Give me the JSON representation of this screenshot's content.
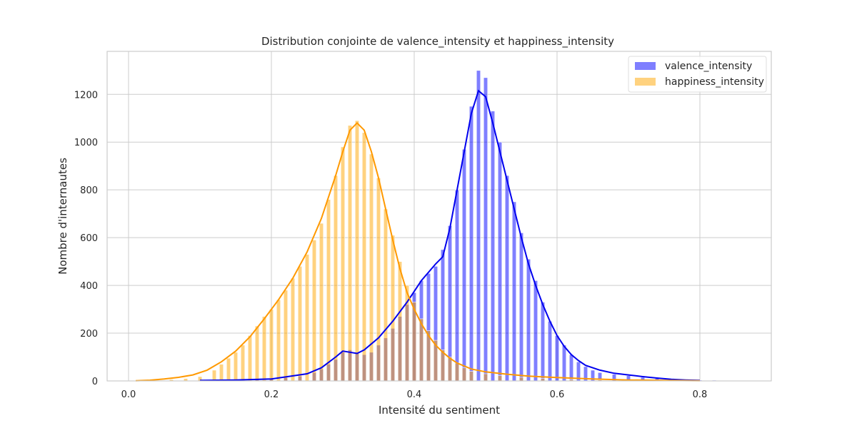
{
  "chart_data": {
    "type": "histogram",
    "title": "Distribution conjointe de valence_intensity et happiness_intensity",
    "xlabel": "Intensité du sentiment",
    "ylabel": "Nombre d'internautes",
    "xlim": [
      -0.03,
      0.9
    ],
    "ylim": [
      0,
      1380
    ],
    "xticks": [
      0.0,
      0.2,
      0.4,
      0.6,
      0.8
    ],
    "xtick_labels": [
      "0.0",
      "0.2",
      "0.4",
      "0.6",
      "0.8"
    ],
    "yticks": [
      0,
      200,
      400,
      600,
      800,
      1000,
      1200
    ],
    "ytick_labels": [
      "0",
      "200",
      "400",
      "600",
      "800",
      "1000",
      "1200"
    ],
    "grid": true,
    "legend_position": "top-right",
    "bin_width": 0.0055,
    "series": [
      {
        "name": "valence_intensity",
        "color": "#0000ff",
        "bar_opacity": 0.5,
        "kde": true,
        "bins": [
          [
            0.1,
            3
          ],
          [
            0.12,
            4
          ],
          [
            0.14,
            5
          ],
          [
            0.16,
            6
          ],
          [
            0.18,
            8
          ],
          [
            0.2,
            10
          ],
          [
            0.22,
            14
          ],
          [
            0.24,
            20
          ],
          [
            0.26,
            35
          ],
          [
            0.27,
            50
          ],
          [
            0.28,
            70
          ],
          [
            0.29,
            90
          ],
          [
            0.3,
            120
          ],
          [
            0.31,
            130
          ],
          [
            0.32,
            120
          ],
          [
            0.33,
            110
          ],
          [
            0.34,
            120
          ],
          [
            0.35,
            150
          ],
          [
            0.36,
            180
          ],
          [
            0.37,
            220
          ],
          [
            0.38,
            270
          ],
          [
            0.39,
            320
          ],
          [
            0.4,
            370
          ],
          [
            0.41,
            420
          ],
          [
            0.42,
            450
          ],
          [
            0.43,
            480
          ],
          [
            0.44,
            550
          ],
          [
            0.45,
            650
          ],
          [
            0.46,
            800
          ],
          [
            0.47,
            970
          ],
          [
            0.48,
            1150
          ],
          [
            0.49,
            1300
          ],
          [
            0.5,
            1270
          ],
          [
            0.51,
            1130
          ],
          [
            0.52,
            1000
          ],
          [
            0.53,
            860
          ],
          [
            0.54,
            750
          ],
          [
            0.55,
            620
          ],
          [
            0.56,
            510
          ],
          [
            0.57,
            420
          ],
          [
            0.58,
            330
          ],
          [
            0.59,
            250
          ],
          [
            0.6,
            190
          ],
          [
            0.61,
            150
          ],
          [
            0.62,
            110
          ],
          [
            0.63,
            80
          ],
          [
            0.64,
            60
          ],
          [
            0.65,
            45
          ],
          [
            0.66,
            35
          ],
          [
            0.68,
            28
          ],
          [
            0.7,
            22
          ],
          [
            0.72,
            15
          ],
          [
            0.74,
            10
          ],
          [
            0.76,
            7
          ],
          [
            0.78,
            5
          ],
          [
            0.8,
            4
          ],
          [
            0.82,
            3
          ],
          [
            0.84,
            2
          ],
          [
            0.86,
            2
          ]
        ],
        "kde_points": [
          [
            0.1,
            2
          ],
          [
            0.15,
            4
          ],
          [
            0.2,
            8
          ],
          [
            0.25,
            30
          ],
          [
            0.27,
            55
          ],
          [
            0.29,
            100
          ],
          [
            0.3,
            125
          ],
          [
            0.31,
            120
          ],
          [
            0.32,
            115
          ],
          [
            0.33,
            130
          ],
          [
            0.35,
            180
          ],
          [
            0.37,
            250
          ],
          [
            0.39,
            330
          ],
          [
            0.41,
            420
          ],
          [
            0.43,
            490
          ],
          [
            0.44,
            520
          ],
          [
            0.45,
            640
          ],
          [
            0.46,
            800
          ],
          [
            0.47,
            960
          ],
          [
            0.48,
            1120
          ],
          [
            0.49,
            1215
          ],
          [
            0.5,
            1190
          ],
          [
            0.51,
            1080
          ],
          [
            0.52,
            960
          ],
          [
            0.53,
            840
          ],
          [
            0.54,
            720
          ],
          [
            0.55,
            600
          ],
          [
            0.56,
            490
          ],
          [
            0.57,
            400
          ],
          [
            0.58,
            320
          ],
          [
            0.59,
            250
          ],
          [
            0.6,
            190
          ],
          [
            0.61,
            145
          ],
          [
            0.62,
            110
          ],
          [
            0.63,
            85
          ],
          [
            0.64,
            65
          ],
          [
            0.66,
            45
          ],
          [
            0.68,
            32
          ],
          [
            0.7,
            25
          ],
          [
            0.72,
            18
          ],
          [
            0.74,
            12
          ],
          [
            0.76,
            7
          ],
          [
            0.78,
            4
          ],
          [
            0.8,
            2
          ]
        ]
      },
      {
        "name": "happiness_intensity",
        "color": "#ffa500",
        "bar_opacity": 0.5,
        "kde": true,
        "bins": [
          [
            0.02,
            2
          ],
          [
            0.04,
            3
          ],
          [
            0.06,
            6
          ],
          [
            0.08,
            10
          ],
          [
            0.1,
            18
          ],
          [
            0.12,
            45
          ],
          [
            0.13,
            70
          ],
          [
            0.14,
            95
          ],
          [
            0.15,
            120
          ],
          [
            0.16,
            150
          ],
          [
            0.17,
            190
          ],
          [
            0.18,
            230
          ],
          [
            0.19,
            270
          ],
          [
            0.2,
            300
          ],
          [
            0.21,
            340
          ],
          [
            0.22,
            380
          ],
          [
            0.23,
            430
          ],
          [
            0.24,
            480
          ],
          [
            0.25,
            530
          ],
          [
            0.26,
            590
          ],
          [
            0.27,
            660
          ],
          [
            0.28,
            760
          ],
          [
            0.29,
            860
          ],
          [
            0.3,
            980
          ],
          [
            0.31,
            1070
          ],
          [
            0.32,
            1090
          ],
          [
            0.33,
            1040
          ],
          [
            0.34,
            950
          ],
          [
            0.35,
            850
          ],
          [
            0.36,
            720
          ],
          [
            0.37,
            610
          ],
          [
            0.38,
            500
          ],
          [
            0.39,
            400
          ],
          [
            0.4,
            330
          ],
          [
            0.41,
            260
          ],
          [
            0.42,
            210
          ],
          [
            0.43,
            170
          ],
          [
            0.44,
            130
          ],
          [
            0.45,
            100
          ],
          [
            0.46,
            75
          ],
          [
            0.47,
            55
          ],
          [
            0.48,
            40
          ],
          [
            0.5,
            30
          ],
          [
            0.52,
            22
          ],
          [
            0.55,
            15
          ],
          [
            0.58,
            10
          ],
          [
            0.62,
            6
          ],
          [
            0.66,
            4
          ],
          [
            0.7,
            3
          ],
          [
            0.75,
            2
          ],
          [
            0.8,
            1
          ]
        ],
        "kde_points": [
          [
            0.01,
            1
          ],
          [
            0.03,
            3
          ],
          [
            0.05,
            8
          ],
          [
            0.07,
            15
          ],
          [
            0.09,
            25
          ],
          [
            0.11,
            45
          ],
          [
            0.13,
            80
          ],
          [
            0.15,
            125
          ],
          [
            0.17,
            185
          ],
          [
            0.19,
            260
          ],
          [
            0.21,
            340
          ],
          [
            0.23,
            430
          ],
          [
            0.25,
            540
          ],
          [
            0.27,
            680
          ],
          [
            0.29,
            860
          ],
          [
            0.3,
            960
          ],
          [
            0.31,
            1050
          ],
          [
            0.32,
            1080
          ],
          [
            0.33,
            1050
          ],
          [
            0.34,
            960
          ],
          [
            0.35,
            850
          ],
          [
            0.36,
            720
          ],
          [
            0.37,
            590
          ],
          [
            0.38,
            470
          ],
          [
            0.39,
            370
          ],
          [
            0.4,
            300
          ],
          [
            0.41,
            240
          ],
          [
            0.42,
            190
          ],
          [
            0.43,
            150
          ],
          [
            0.44,
            120
          ],
          [
            0.45,
            95
          ],
          [
            0.46,
            75
          ],
          [
            0.48,
            50
          ],
          [
            0.5,
            38
          ],
          [
            0.53,
            28
          ],
          [
            0.56,
            20
          ],
          [
            0.6,
            14
          ],
          [
            0.65,
            8
          ],
          [
            0.7,
            4
          ],
          [
            0.75,
            2
          ],
          [
            0.8,
            1
          ]
        ]
      }
    ]
  }
}
